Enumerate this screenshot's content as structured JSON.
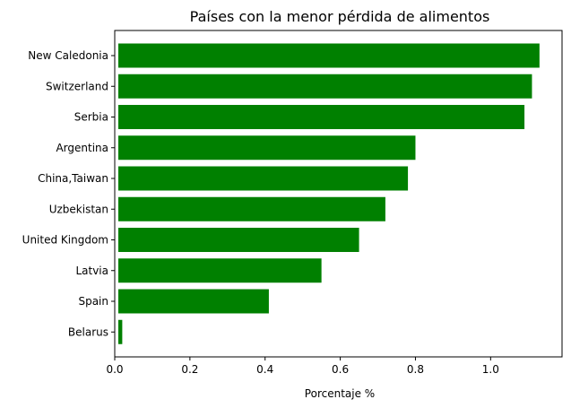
{
  "chart_data": {
    "type": "bar",
    "orientation": "horizontal",
    "title": "Países con la menor pérdida de alimentos",
    "xlabel": "Porcentaje %",
    "ylabel": "",
    "categories": [
      "New Caledonia",
      "Switzerland",
      "Serbia",
      "Argentina",
      "China,Taiwan",
      "Uzbekistan",
      "United Kingdom",
      "Latvia",
      "Spain",
      "Belarus"
    ],
    "values": [
      1.13,
      1.11,
      1.09,
      0.8,
      0.78,
      0.72,
      0.65,
      0.55,
      0.41,
      0.02
    ],
    "xlim": [
      0,
      1.19
    ],
    "xticks": [
      "0.0",
      "0.2",
      "0.4",
      "0.6",
      "0.8",
      "1.0"
    ],
    "bar_color": "#008000",
    "grid": false,
    "legend": "none"
  }
}
